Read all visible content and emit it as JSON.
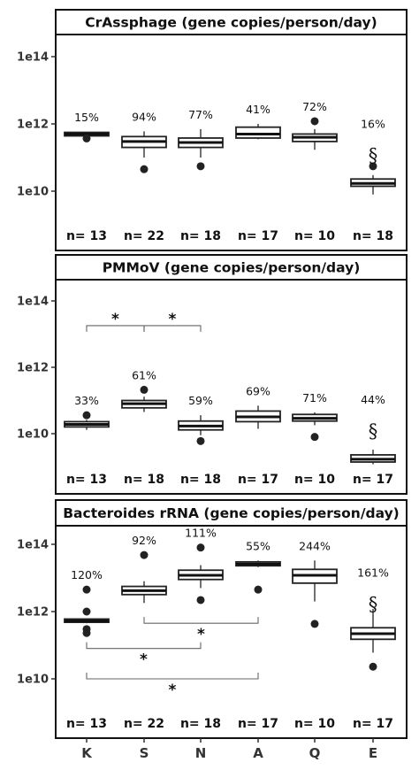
{
  "chart_data": [
    {
      "type": "box",
      "title": "CrAssphage (gene copies/person/day)",
      "yscale": "log",
      "ylim": [
        1000000000.0,
        1000000000000000.0
      ],
      "yticks": [
        10000000000.0,
        1000000000000.0,
        100000000000000.0
      ],
      "ytick_labels": [
        "1e10",
        "1e12",
        "1e14"
      ],
      "categories": [
        "K",
        "S",
        "N",
        "A",
        "Q",
        "E"
      ],
      "boxes": [
        {
          "category": "K",
          "q1": 440000000000.0,
          "median": 500000000000.0,
          "q3": 560000000000.0,
          "whisker_low": 420000000000.0,
          "whisker_high": 580000000000.0,
          "outliers": [
            370000000000.0
          ]
        },
        {
          "category": "S",
          "q1": 200000000000.0,
          "median": 300000000000.0,
          "q3": 420000000000.0,
          "whisker_low": 100000000000.0,
          "whisker_high": 600000000000.0,
          "outliers": [
            45000000000.0
          ]
        },
        {
          "category": "N",
          "q1": 200000000000.0,
          "median": 280000000000.0,
          "q3": 380000000000.0,
          "whisker_low": 100000000000.0,
          "whisker_high": 700000000000.0,
          "outliers": [
            55000000000.0
          ]
        },
        {
          "category": "A",
          "q1": 380000000000.0,
          "median": 500000000000.0,
          "q3": 800000000000.0,
          "whisker_low": 350000000000.0,
          "whisker_high": 1000000000000.0,
          "outliers": []
        },
        {
          "category": "Q",
          "q1": 300000000000.0,
          "median": 400000000000.0,
          "q3": 500000000000.0,
          "whisker_low": 170000000000.0,
          "whisker_high": 700000000000.0,
          "outliers": [
            1200000000000.0
          ]
        },
        {
          "category": "E",
          "q1": 14000000000.0,
          "median": 17000000000.0,
          "q3": 23000000000.0,
          "whisker_low": 8000000000.0,
          "whisker_high": 30000000000.0,
          "outliers": [
            55000000000.0
          ]
        }
      ],
      "percent_labels": [
        "15%",
        "94%",
        "77%",
        "41%",
        "72%",
        "16%"
      ],
      "n_labels": [
        "n= 13",
        "n= 22",
        "n= 18",
        "n= 17",
        "n= 10",
        "n= 18"
      ],
      "symbol": {
        "category": "E",
        "text": "§"
      },
      "significance": []
    },
    {
      "type": "box",
      "title": "PMMoV (gene copies/person/day)",
      "yscale": "log",
      "ylim": [
        1000000000.0,
        1000000000000000.0
      ],
      "yticks": [
        10000000000.0,
        1000000000000.0,
        100000000000000.0
      ],
      "ytick_labels": [
        "1e10",
        "1e12",
        "1e14"
      ],
      "categories": [
        "K",
        "S",
        "N",
        "A",
        "Q",
        "E"
      ],
      "boxes": [
        {
          "category": "K",
          "q1": 16000000000.0,
          "median": 19000000000.0,
          "q3": 23000000000.0,
          "whisker_low": 13000000000.0,
          "whisker_high": 26000000000.0,
          "outliers": [
            36000000000.0
          ]
        },
        {
          "category": "S",
          "q1": 60000000000.0,
          "median": 80000000000.0,
          "q3": 100000000000.0,
          "whisker_low": 45000000000.0,
          "whisker_high": 130000000000.0,
          "outliers": [
            210000000000.0
          ]
        },
        {
          "category": "N",
          "q1": 13000000000.0,
          "median": 17000000000.0,
          "q3": 24000000000.0,
          "whisker_low": 9000000000.0,
          "whisker_high": 36000000000.0,
          "outliers": [
            6000000000.0
          ]
        },
        {
          "category": "A",
          "q1": 23000000000.0,
          "median": 32000000000.0,
          "q3": 48000000000.0,
          "whisker_low": 14000000000.0,
          "whisker_high": 70000000000.0,
          "outliers": []
        },
        {
          "category": "Q",
          "q1": 24000000000.0,
          "median": 29000000000.0,
          "q3": 38000000000.0,
          "whisker_low": 18000000000.0,
          "whisker_high": 44000000000.0,
          "outliers": [
            8000000000.0
          ]
        },
        {
          "category": "E",
          "q1": 1400000000.0,
          "median": 1700000000.0,
          "q3": 2300000000.0,
          "whisker_low": 1200000000.0,
          "whisker_high": 3300000000.0,
          "outliers": []
        }
      ],
      "percent_labels": [
        "33%",
        "61%",
        "59%",
        "69%",
        "71%",
        "44%"
      ],
      "n_labels": [
        "n= 13",
        "n= 18",
        "n= 18",
        "n= 17",
        "n= 10",
        "n= 17"
      ],
      "symbol": {
        "category": "E",
        "text": "§"
      },
      "significance": [
        {
          "from": "K",
          "to": "S",
          "label": "*",
          "level": 18000000000000.0
        },
        {
          "from": "S",
          "to": "N",
          "label": "*",
          "level": 18000000000000.0
        }
      ]
    },
    {
      "type": "box",
      "title": "Bacteroides rRNA (gene copies/person/day)",
      "yscale": "log",
      "ylim": [
        1000000000.0,
        1000000000000000.0
      ],
      "yticks": [
        10000000000.0,
        1000000000000.0,
        100000000000000.0
      ],
      "ytick_labels": [
        "1e10",
        "1e12",
        "1e14"
      ],
      "categories": [
        "K",
        "S",
        "N",
        "A",
        "Q",
        "E"
      ],
      "boxes": [
        {
          "category": "K",
          "q1": 480000000000.0,
          "median": 530000000000.0,
          "q3": 600000000000.0,
          "whisker_low": 450000000000.0,
          "whisker_high": 630000000000.0,
          "outliers": [
            4500000000000.0,
            1000000000000.0,
            300000000000.0,
            230000000000.0
          ]
        },
        {
          "category": "S",
          "q1": 3200000000000.0,
          "median": 4200000000000.0,
          "q3": 5600000000000.0,
          "whisker_low": 1800000000000.0,
          "whisker_high": 8000000000000.0,
          "outliers": [
            48000000000000.0
          ]
        },
        {
          "category": "N",
          "q1": 9000000000000.0,
          "median": 12000000000000.0,
          "q3": 17000000000000.0,
          "whisker_low": 5000000000000.0,
          "whisker_high": 24000000000000.0,
          "outliers": [
            80000000000000.0,
            2200000000000.0
          ]
        },
        {
          "category": "A",
          "q1": 23000000000000.0,
          "median": 26000000000000.0,
          "q3": 30000000000000.0,
          "whisker_low": 21000000000000.0,
          "whisker_high": 33000000000000.0,
          "outliers": [
            4500000000000.0
          ]
        },
        {
          "category": "Q",
          "q1": 7000000000000.0,
          "median": 12000000000000.0,
          "q3": 18000000000000.0,
          "whisker_low": 2000000000000.0,
          "whisker_high": 33000000000000.0,
          "outliers": [
            430000000000.0
          ]
        },
        {
          "category": "E",
          "q1": 150000000000.0,
          "median": 220000000000.0,
          "q3": 330000000000.0,
          "whisker_low": 60000000000.0,
          "whisker_high": 1200000000000.0,
          "outliers": [
            23000000000.0
          ]
        }
      ],
      "percent_labels": [
        "120%",
        "92%",
        "111%",
        "55%",
        "244%",
        "161%"
      ],
      "n_labels": [
        "n= 13",
        "n= 22",
        "n= 18",
        "n= 17",
        "n= 10",
        "n= 17"
      ],
      "symbol": {
        "category": "E",
        "text": "§"
      },
      "significance": [
        {
          "from": "S",
          "to": "A",
          "label": "*",
          "level": 450000000000.0
        },
        {
          "from": "K",
          "to": "N",
          "label": "*",
          "level": 80000000000.0
        },
        {
          "from": "K",
          "to": "A",
          "label": "*",
          "level": 10000000000.0
        }
      ]
    }
  ],
  "x_axis": {
    "tick_labels": [
      "K",
      "S",
      "N",
      "A",
      "Q",
      "E"
    ]
  }
}
